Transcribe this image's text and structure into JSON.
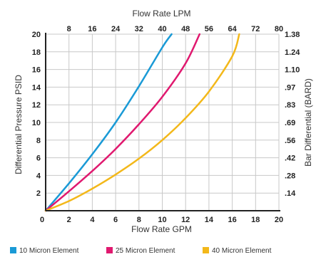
{
  "chart_data": {
    "type": "line",
    "title": "",
    "xlabel": "Flow Rate GPM",
    "x2label": "Flow Rate LPM",
    "ylabel": "Differential Pressure PSID",
    "y2label": "Bar Differential (BARD)",
    "xlim": [
      0,
      20
    ],
    "ylim": [
      0,
      20
    ],
    "x_ticks": [
      "2",
      "4",
      "6",
      "8",
      "10",
      "12",
      "14",
      "16",
      "18",
      "20"
    ],
    "x_origin_label": "0",
    "x2_ticks": [
      {
        "value": 8,
        "label": "8"
      },
      {
        "value": 16,
        "label": "16"
      },
      {
        "value": 24,
        "label": "24"
      },
      {
        "value": 32,
        "label": "32"
      },
      {
        "value": 40,
        "label": "40"
      },
      {
        "value": 48,
        "label": "48"
      },
      {
        "value": 56,
        "label": "56"
      },
      {
        "value": 64,
        "label": "64"
      },
      {
        "value": 72,
        "label": "72"
      },
      {
        "value": 80,
        "label": "80"
      }
    ],
    "y_ticks": [
      "2",
      "4",
      "6",
      "8",
      "10",
      "12",
      "14",
      "16",
      "18",
      "20"
    ],
    "y2_ticks": [
      ".14",
      ".28",
      ".42",
      ".56",
      ".69",
      ".83",
      ".97",
      "1.10",
      "1.24",
      "1.38"
    ],
    "grid": true,
    "legend_position": "bottom",
    "series": [
      {
        "name": "10 Micron Element",
        "color": "#1a9ad6",
        "x": [
          0,
          2,
          4,
          6,
          8,
          10,
          10.8
        ],
        "y": [
          0,
          3.1,
          6.4,
          10.0,
          14.1,
          18.5,
          20
        ]
      },
      {
        "name": "25 Micron Element",
        "color": "#e0196f",
        "x": [
          0,
          2,
          4,
          6,
          8,
          10,
          12,
          13.2
        ],
        "y": [
          0,
          2.2,
          4.5,
          7.0,
          9.8,
          12.9,
          16.7,
          20
        ]
      },
      {
        "name": "40 Micron Element",
        "color": "#f3b81a",
        "x": [
          0,
          2,
          4,
          6,
          8,
          10,
          12,
          14,
          16,
          16.6
        ],
        "y": [
          0,
          1.1,
          2.5,
          4.1,
          5.9,
          8.0,
          10.5,
          13.5,
          17.5,
          20
        ]
      }
    ]
  }
}
